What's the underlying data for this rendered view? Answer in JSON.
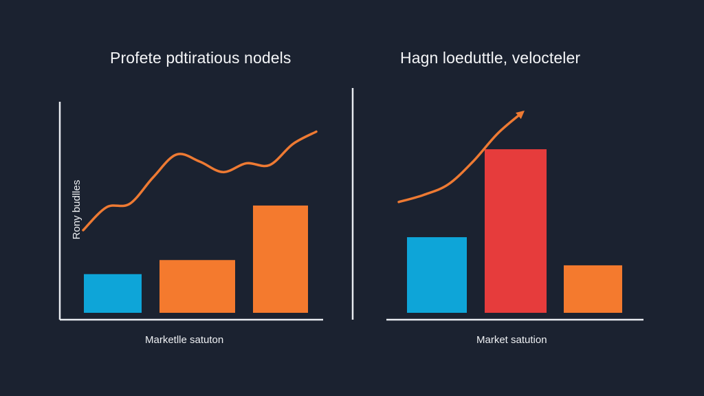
{
  "colors": {
    "background": "#1b2230",
    "axis": "#e9ecf1",
    "blue": "#0ea5d8",
    "orange": "#f47a2e",
    "red": "#e63c3c",
    "line": "#ee7a33"
  },
  "chart_data": [
    {
      "type": "bar",
      "title": "Profete pdtiratious nodels",
      "xlabel": "Marketlle satuton",
      "ylabel": "Rony budlles",
      "categories": [
        "",
        "",
        ""
      ],
      "values": [
        22,
        30,
        61
      ],
      "bar_colors": [
        "blue",
        "orange",
        "orange"
      ],
      "ylim": [
        0,
        120
      ],
      "grid": false,
      "trend_line": {
        "type": "line",
        "x": [
          0,
          1,
          2,
          3,
          4,
          5,
          6,
          7,
          8,
          9,
          10
        ],
        "values": [
          47,
          60,
          62,
          77,
          90,
          86,
          80,
          85,
          84,
          96,
          103
        ],
        "xlim": [
          0,
          10
        ],
        "ylim": [
          0,
          120
        ]
      }
    },
    {
      "type": "bar",
      "title": "Hagn loeduttle, velocteler",
      "xlabel": "Market satution",
      "ylabel": "",
      "categories": [
        "",
        "",
        ""
      ],
      "values": [
        43,
        93,
        27
      ],
      "bar_colors": [
        "blue",
        "red",
        "orange"
      ],
      "ylim": [
        0,
        120
      ],
      "grid": false,
      "trend_line": {
        "type": "line",
        "x": [
          0,
          1,
          2,
          3,
          4,
          5
        ],
        "values": [
          63,
          67,
          73,
          86,
          102,
          114
        ],
        "xlim": [
          0,
          10
        ],
        "ylim": [
          0,
          120
        ],
        "arrow": true
      }
    }
  ]
}
